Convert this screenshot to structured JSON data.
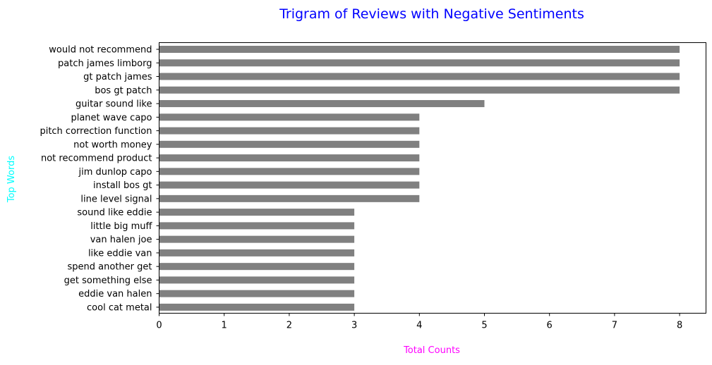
{
  "chart_data": {
    "type": "bar",
    "orientation": "horizontal",
    "title": "Trigram of Reviews with Negative Sentiments",
    "xlabel": "Total Counts",
    "ylabel": "Top Words",
    "xlim": [
      0,
      8.4
    ],
    "xticks": [
      0,
      1,
      2,
      3,
      4,
      5,
      6,
      7,
      8
    ],
    "grid": false,
    "categories": [
      "would not recommend",
      "patch james limborg",
      "gt patch james",
      "bos gt patch",
      "guitar sound like",
      "planet wave capo",
      "pitch correction function",
      "not worth money",
      "not recommend product",
      "jim dunlop capo",
      "install bos gt",
      "line level signal",
      "sound like eddie",
      "little big muff",
      "van halen joe",
      "like eddie van",
      "spend another get",
      "get something else",
      "eddie van halen",
      "cool cat metal"
    ],
    "values": [
      8,
      8,
      8,
      8,
      5,
      4,
      4,
      4,
      4,
      4,
      4,
      4,
      3,
      3,
      3,
      3,
      3,
      3,
      3,
      3
    ],
    "colors": {
      "bar": "#808080",
      "title": "#0000ff",
      "xlabel": "#ff00ff",
      "ylabel": "#00ffff",
      "axis": "#000000"
    }
  }
}
